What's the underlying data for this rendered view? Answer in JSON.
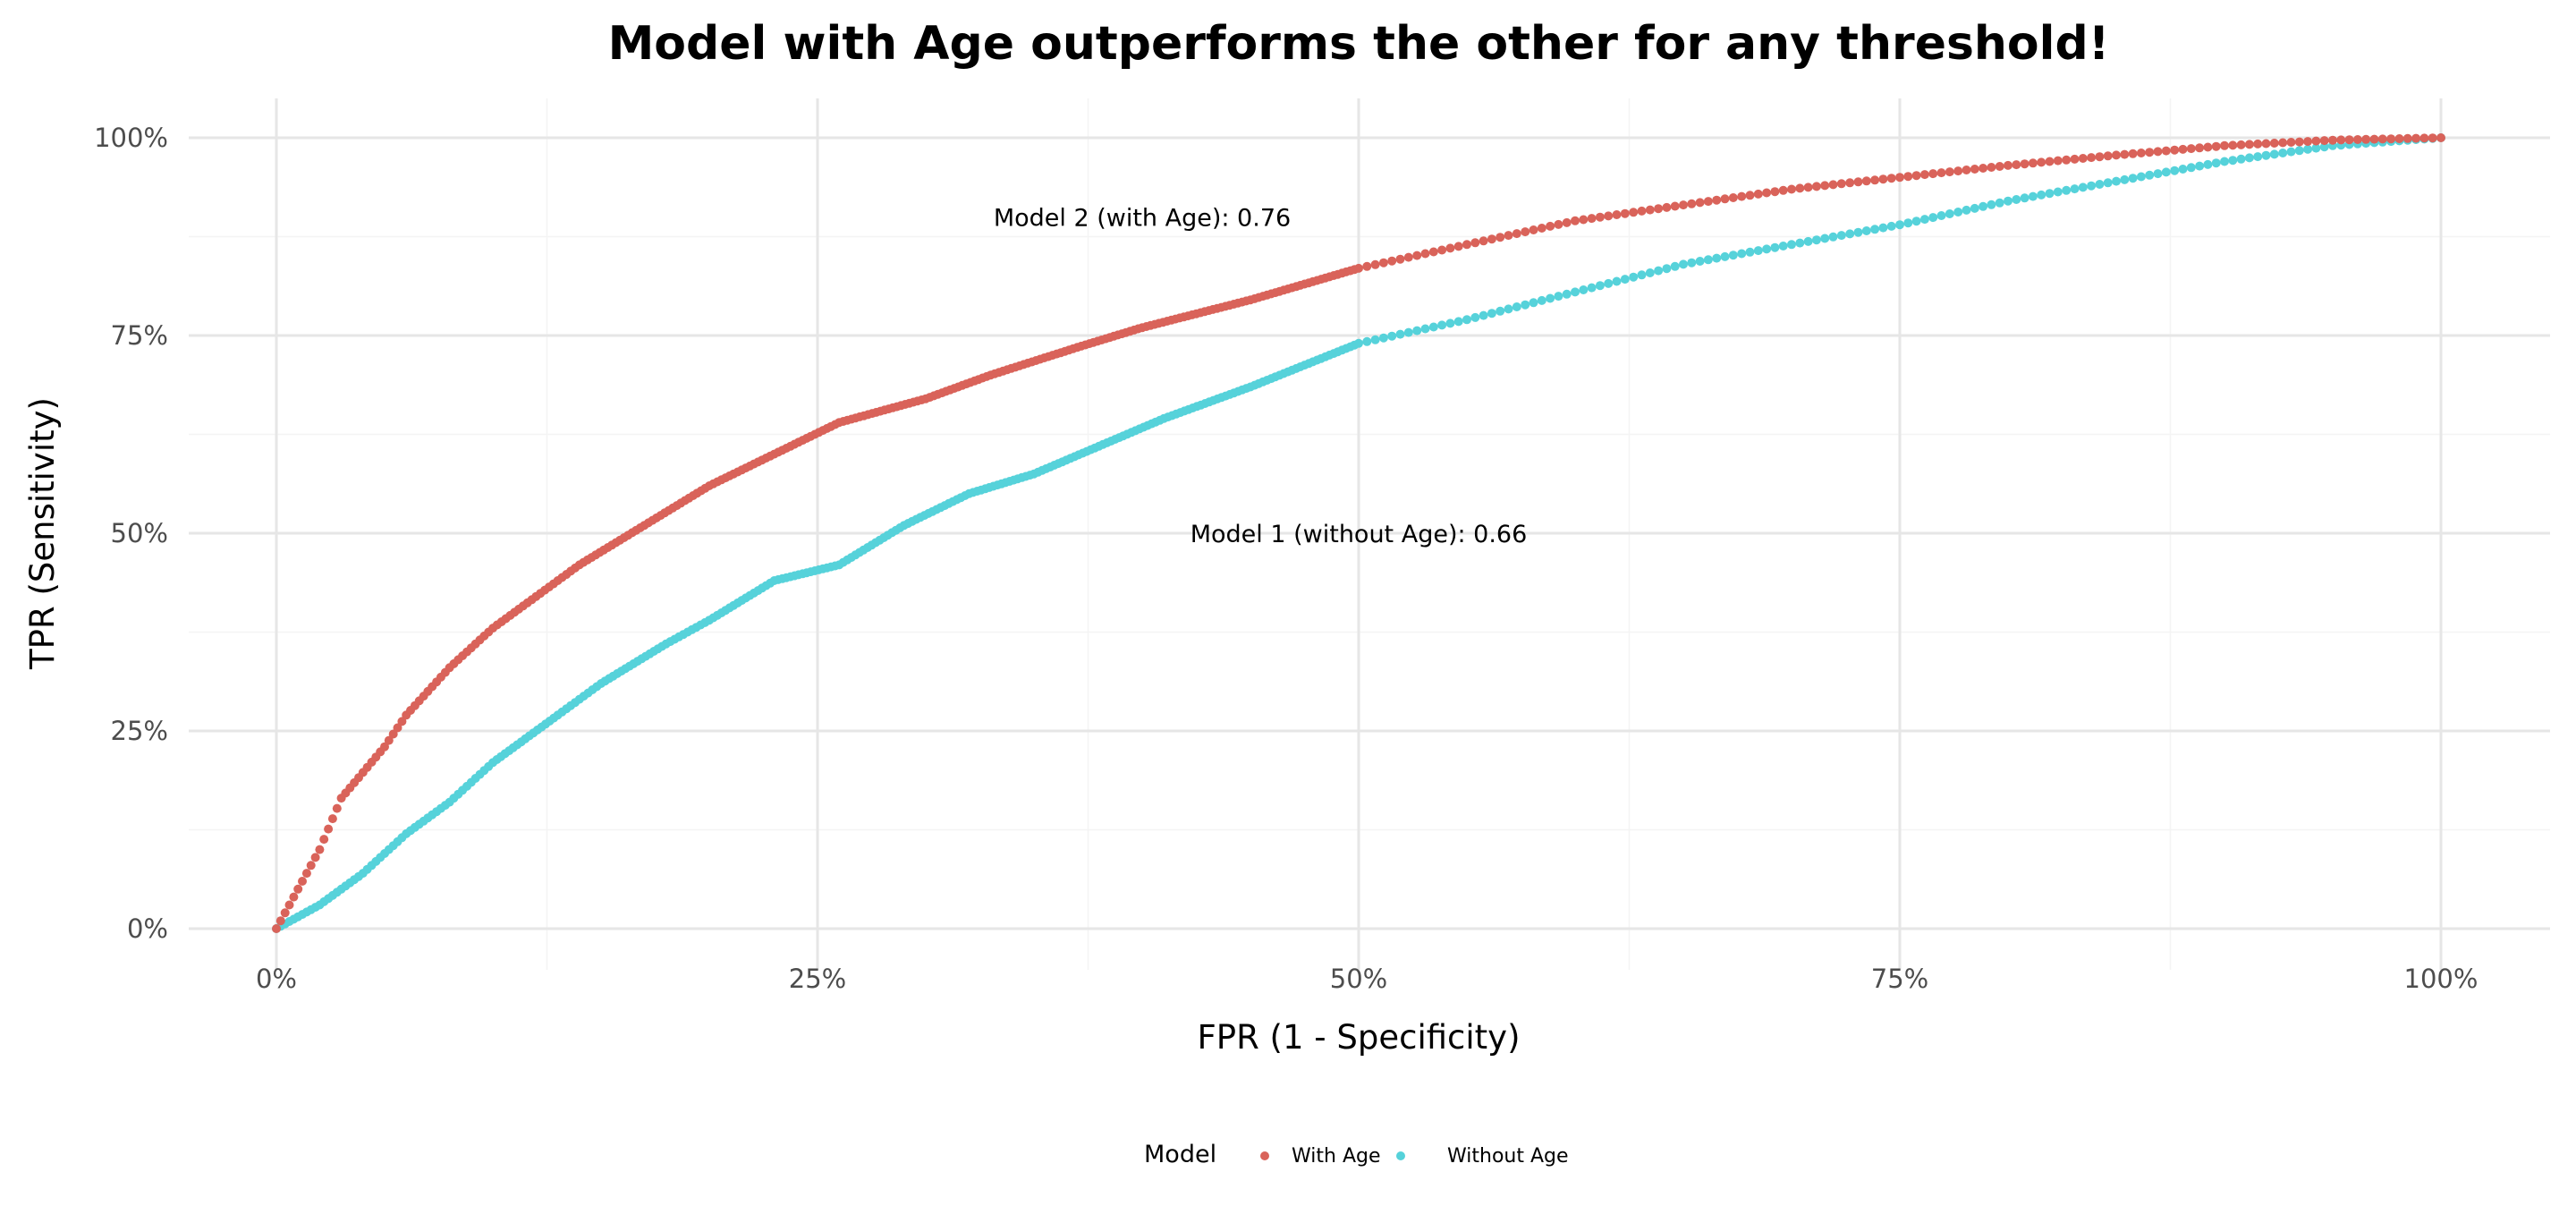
{
  "chart_data": {
    "type": "scatter",
    "title": "Model with Age outperforms the other for any threshold!",
    "xlabel": "FPR (1 - Specificity)",
    "ylabel": "TPR (Sensitivity)",
    "xlim": [
      0,
      1
    ],
    "ylim": [
      0,
      1
    ],
    "grid": true,
    "x_ticks": [
      0,
      0.25,
      0.5,
      0.75,
      1
    ],
    "x_tick_labels": [
      "0%",
      "25%",
      "50%",
      "75%",
      "100%"
    ],
    "y_ticks": [
      0,
      0.25,
      0.5,
      0.75,
      1
    ],
    "y_tick_labels": [
      "0%",
      "25%",
      "50%",
      "75%",
      "100%"
    ],
    "legend": {
      "title": "Model",
      "placement": "bottom",
      "entries": [
        "With Age",
        "Without Age"
      ]
    },
    "annotations": [
      {
        "text": "Model 2 (with Age): 0.76",
        "x": 0.4,
        "y": 0.9
      },
      {
        "text": "Model 1 (without Age): 0.66",
        "x": 0.5,
        "y": 0.5
      }
    ],
    "series": [
      {
        "name": "With Age",
        "color": "#D9635A",
        "x": [
          0,
          0.01,
          0.02,
          0.03,
          0.05,
          0.06,
          0.08,
          0.1,
          0.12,
          0.14,
          0.17,
          0.2,
          0.23,
          0.26,
          0.3,
          0.33,
          0.37,
          0.4,
          0.45,
          0.5,
          0.55,
          0.6,
          0.65,
          0.7,
          0.75,
          0.8,
          0.85,
          0.9,
          0.95,
          1
        ],
        "y": [
          0,
          0.05,
          0.1,
          0.165,
          0.23,
          0.27,
          0.33,
          0.38,
          0.42,
          0.46,
          0.51,
          0.56,
          0.6,
          0.64,
          0.67,
          0.7,
          0.735,
          0.76,
          0.795,
          0.835,
          0.865,
          0.895,
          0.915,
          0.935,
          0.95,
          0.965,
          0.978,
          0.99,
          0.997,
          1
        ]
      },
      {
        "name": "Without Age",
        "color": "#56D2DA",
        "x": [
          0,
          0.02,
          0.04,
          0.06,
          0.08,
          0.1,
          0.13,
          0.15,
          0.18,
          0.2,
          0.23,
          0.26,
          0.29,
          0.32,
          0.35,
          0.38,
          0.41,
          0.45,
          0.5,
          0.55,
          0.6,
          0.65,
          0.7,
          0.75,
          0.8,
          0.85,
          0.9,
          0.95,
          1
        ],
        "y": [
          0,
          0.03,
          0.07,
          0.12,
          0.16,
          0.21,
          0.27,
          0.31,
          0.36,
          0.39,
          0.44,
          0.46,
          0.51,
          0.55,
          0.575,
          0.61,
          0.645,
          0.685,
          0.74,
          0.77,
          0.805,
          0.84,
          0.865,
          0.89,
          0.92,
          0.945,
          0.97,
          0.99,
          1
        ]
      }
    ]
  }
}
